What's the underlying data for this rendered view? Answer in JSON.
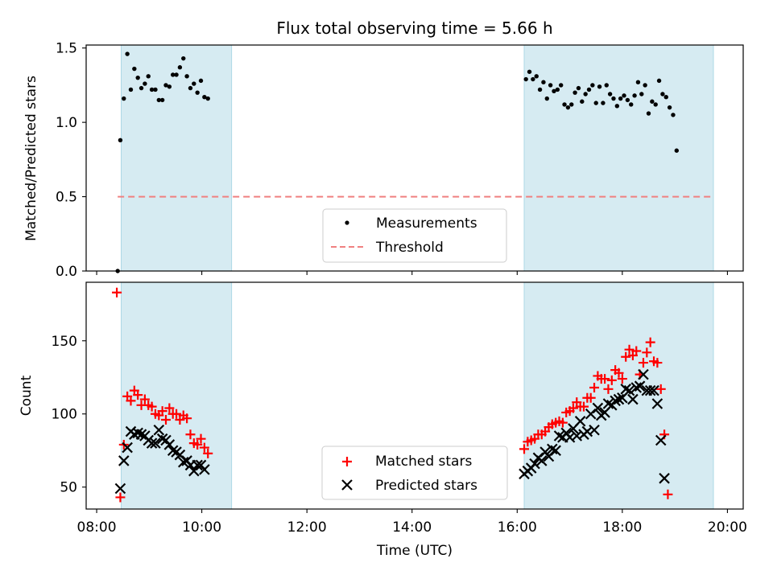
{
  "chart_data": [
    {
      "type": "scatter",
      "title": "Flux total observing time = 5.66 h",
      "ylabel": "Matched/Predicted stars",
      "xlim": [
        "07:48",
        "20:18"
      ],
      "ylim": [
        0,
        1.52
      ],
      "xticks": [
        "08:00",
        "10:00",
        "12:00",
        "14:00",
        "16:00",
        "18:00",
        "20:00"
      ],
      "yticks": [
        "0.0",
        "0.5",
        "1.0",
        "1.5"
      ],
      "grid": false,
      "legend_placement": "lower-center",
      "shaded_intervals": [
        [
          "08:28",
          "10:34"
        ],
        [
          "16:08",
          "19:44"
        ]
      ],
      "shade_color": "#add8e6",
      "threshold": {
        "name": "Threshold",
        "value": 0.5,
        "x_range": [
          "08:24",
          "19:44"
        ],
        "color": "#f08080",
        "style": "dashed"
      },
      "series": [
        {
          "name": "Measurements",
          "color": "#000000",
          "marker": "dot",
          "points": [
            [
              "08:24",
              0.0
            ],
            [
              "08:27",
              0.88
            ],
            [
              "08:31",
              1.16
            ],
            [
              "08:35",
              1.46
            ],
            [
              "08:39",
              1.22
            ],
            [
              "08:43",
              1.36
            ],
            [
              "08:47",
              1.3
            ],
            [
              "08:51",
              1.23
            ],
            [
              "08:55",
              1.26
            ],
            [
              "08:59",
              1.31
            ],
            [
              "09:03",
              1.22
            ],
            [
              "09:07",
              1.22
            ],
            [
              "09:11",
              1.15
            ],
            [
              "09:15",
              1.15
            ],
            [
              "09:19",
              1.25
            ],
            [
              "09:23",
              1.24
            ],
            [
              "09:27",
              1.32
            ],
            [
              "09:31",
              1.32
            ],
            [
              "09:35",
              1.37
            ],
            [
              "09:39",
              1.43
            ],
            [
              "09:43",
              1.31
            ],
            [
              "09:47",
              1.23
            ],
            [
              "09:51",
              1.26
            ],
            [
              "09:55",
              1.2
            ],
            [
              "09:59",
              1.28
            ],
            [
              "10:03",
              1.17
            ],
            [
              "10:07",
              1.16
            ],
            [
              "16:10",
              1.29
            ],
            [
              "16:14",
              1.34
            ],
            [
              "16:18",
              1.29
            ],
            [
              "16:22",
              1.31
            ],
            [
              "16:26",
              1.22
            ],
            [
              "16:30",
              1.27
            ],
            [
              "16:34",
              1.16
            ],
            [
              "16:38",
              1.25
            ],
            [
              "16:42",
              1.21
            ],
            [
              "16:46",
              1.22
            ],
            [
              "16:50",
              1.25
            ],
            [
              "16:54",
              1.12
            ],
            [
              "16:58",
              1.1
            ],
            [
              "17:02",
              1.12
            ],
            [
              "17:06",
              1.2
            ],
            [
              "17:10",
              1.23
            ],
            [
              "17:14",
              1.14
            ],
            [
              "17:18",
              1.19
            ],
            [
              "17:22",
              1.22
            ],
            [
              "17:26",
              1.25
            ],
            [
              "17:30",
              1.13
            ],
            [
              "17:34",
              1.24
            ],
            [
              "17:38",
              1.13
            ],
            [
              "17:42",
              1.25
            ],
            [
              "17:46",
              1.19
            ],
            [
              "17:50",
              1.16
            ],
            [
              "17:54",
              1.11
            ],
            [
              "17:58",
              1.16
            ],
            [
              "18:02",
              1.18
            ],
            [
              "18:06",
              1.15
            ],
            [
              "18:10",
              1.12
            ],
            [
              "18:14",
              1.18
            ],
            [
              "18:18",
              1.27
            ],
            [
              "18:22",
              1.19
            ],
            [
              "18:26",
              1.25
            ],
            [
              "18:30",
              1.06
            ],
            [
              "18:34",
              1.14
            ],
            [
              "18:38",
              1.12
            ],
            [
              "18:42",
              1.28
            ],
            [
              "18:46",
              1.19
            ],
            [
              "18:50",
              1.17
            ],
            [
              "18:54",
              1.1
            ],
            [
              "18:58",
              1.05
            ],
            [
              "19:02",
              0.81
            ]
          ]
        }
      ]
    },
    {
      "type": "scatter",
      "xlabel": "Time (UTC)",
      "ylabel": "Count",
      "xlim": [
        "07:48",
        "20:18"
      ],
      "ylim": [
        35,
        190
      ],
      "xticks": [
        "08:00",
        "10:00",
        "12:00",
        "14:00",
        "16:00",
        "18:00",
        "20:00"
      ],
      "yticks": [
        "50",
        "100",
        "150"
      ],
      "grid": false,
      "legend_placement": "lower-center",
      "shaded_intervals": [
        [
          "08:28",
          "10:34"
        ],
        [
          "16:08",
          "19:44"
        ]
      ],
      "shade_color": "#add8e6",
      "series": [
        {
          "name": "Matched stars",
          "color": "#ff0000",
          "marker": "plus",
          "points": [
            [
              "08:23",
              183
            ],
            [
              "08:27",
              43
            ],
            [
              "08:31",
              79
            ],
            [
              "08:35",
              112
            ],
            [
              "08:39",
              109
            ],
            [
              "08:43",
              116
            ],
            [
              "08:47",
              113
            ],
            [
              "08:51",
              106
            ],
            [
              "08:55",
              110
            ],
            [
              "08:59",
              106
            ],
            [
              "09:03",
              105
            ],
            [
              "09:07",
              100
            ],
            [
              "09:11",
              99
            ],
            [
              "09:15",
              102
            ],
            [
              "09:19",
              96
            ],
            [
              "09:23",
              104
            ],
            [
              "09:27",
              100
            ],
            [
              "09:31",
              100
            ],
            [
              "09:35",
              96
            ],
            [
              "09:39",
              99
            ],
            [
              "09:43",
              97
            ],
            [
              "09:47",
              86
            ],
            [
              "09:51",
              80
            ],
            [
              "09:55",
              79
            ],
            [
              "09:59",
              83
            ],
            [
              "10:03",
              77
            ],
            [
              "10:07",
              73
            ],
            [
              "16:08",
              76
            ],
            [
              "16:12",
              81
            ],
            [
              "16:16",
              82
            ],
            [
              "16:20",
              83
            ],
            [
              "16:24",
              86
            ],
            [
              "16:28",
              86
            ],
            [
              "16:32",
              88
            ],
            [
              "16:36",
              91
            ],
            [
              "16:40",
              93
            ],
            [
              "16:44",
              94
            ],
            [
              "16:48",
              95
            ],
            [
              "16:52",
              94
            ],
            [
              "16:56",
              101
            ],
            [
              "17:00",
              102
            ],
            [
              "17:04",
              104
            ],
            [
              "17:08",
              108
            ],
            [
              "17:12",
              105
            ],
            [
              "17:16",
              105
            ],
            [
              "17:20",
              111
            ],
            [
              "17:24",
              111
            ],
            [
              "17:28",
              118
            ],
            [
              "17:32",
              126
            ],
            [
              "17:36",
              124
            ],
            [
              "17:40",
              124
            ],
            [
              "17:44",
              117
            ],
            [
              "17:48",
              123
            ],
            [
              "17:52",
              130
            ],
            [
              "17:56",
              128
            ],
            [
              "18:00",
              124
            ],
            [
              "18:04",
              139
            ],
            [
              "18:08",
              144
            ],
            [
              "18:12",
              140
            ],
            [
              "18:16",
              143
            ],
            [
              "18:20",
              127
            ],
            [
              "18:24",
              135
            ],
            [
              "18:28",
              142
            ],
            [
              "18:32",
              149
            ],
            [
              "18:36",
              136
            ],
            [
              "18:40",
              135
            ],
            [
              "18:44",
              117
            ],
            [
              "18:48",
              86
            ],
            [
              "18:52",
              45
            ]
          ]
        },
        {
          "name": "Predicted stars",
          "color": "#000000",
          "marker": "x",
          "points": [
            [
              "08:27",
              49
            ],
            [
              "08:31",
              68
            ],
            [
              "08:35",
              77
            ],
            [
              "08:39",
              88
            ],
            [
              "08:43",
              86
            ],
            [
              "08:47",
              87
            ],
            [
              "08:51",
              86
            ],
            [
              "08:55",
              85
            ],
            [
              "08:59",
              82
            ],
            [
              "09:03",
              80
            ],
            [
              "09:07",
              80
            ],
            [
              "09:11",
              89
            ],
            [
              "09:15",
              83
            ],
            [
              "09:19",
              82
            ],
            [
              "09:23",
              79
            ],
            [
              "09:27",
              75
            ],
            [
              "09:31",
              74
            ],
            [
              "09:35",
              72
            ],
            [
              "09:39",
              67
            ],
            [
              "09:43",
              68
            ],
            [
              "09:47",
              65
            ],
            [
              "09:51",
              61
            ],
            [
              "09:55",
              65
            ],
            [
              "09:59",
              65
            ],
            [
              "10:03",
              62
            ],
            [
              "16:08",
              59
            ],
            [
              "16:12",
              61
            ],
            [
              "16:16",
              63
            ],
            [
              "16:20",
              66
            ],
            [
              "16:24",
              70
            ],
            [
              "16:28",
              68
            ],
            [
              "16:32",
              74
            ],
            [
              "16:36",
              71
            ],
            [
              "16:40",
              76
            ],
            [
              "16:44",
              75
            ],
            [
              "16:48",
              85
            ],
            [
              "16:52",
              84
            ],
            [
              "16:56",
              87
            ],
            [
              "17:00",
              84
            ],
            [
              "17:04",
              90
            ],
            [
              "17:08",
              85
            ],
            [
              "17:12",
              95
            ],
            [
              "17:16",
              86
            ],
            [
              "17:20",
              88
            ],
            [
              "17:24",
              100
            ],
            [
              "17:28",
              89
            ],
            [
              "17:32",
              104
            ],
            [
              "17:36",
              99
            ],
            [
              "17:40",
              101
            ],
            [
              "17:44",
              107
            ],
            [
              "17:48",
              106
            ],
            [
              "17:52",
              109
            ],
            [
              "17:56",
              110
            ],
            [
              "18:00",
              111
            ],
            [
              "18:04",
              117
            ],
            [
              "18:08",
              116
            ],
            [
              "18:12",
              110
            ],
            [
              "18:16",
              118
            ],
            [
              "18:20",
              119
            ],
            [
              "18:24",
              127
            ],
            [
              "18:28",
              116
            ],
            [
              "18:32",
              116
            ],
            [
              "18:36",
              116
            ],
            [
              "18:40",
              107
            ],
            [
              "18:44",
              82
            ],
            [
              "18:48",
              56
            ]
          ]
        }
      ]
    }
  ]
}
